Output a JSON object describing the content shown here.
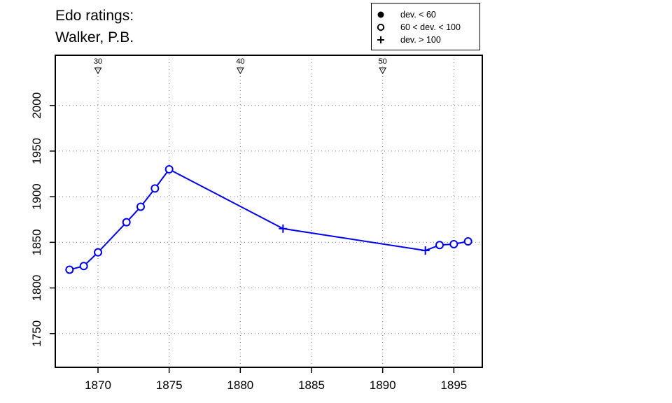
{
  "chart_data": {
    "type": "line",
    "title_lines": [
      "Edo ratings:",
      "Walker, P.B."
    ],
    "xlabel": "",
    "ylabel": "",
    "xlim": [
      1867,
      1897
    ],
    "ylim": [
      1713,
      2055
    ],
    "x_ticks": [
      1870,
      1875,
      1880,
      1885,
      1890,
      1895
    ],
    "y_ticks": [
      1750,
      1800,
      1850,
      1900,
      1950,
      2000
    ],
    "grid": true,
    "legend": {
      "placement": "top-right",
      "entries": [
        {
          "symbol": "filled-circle",
          "label": "dev. < 60"
        },
        {
          "symbol": "open-circle",
          "label": "60 < dev. < 100"
        },
        {
          "symbol": "plus",
          "label": "dev. > 100"
        }
      ]
    },
    "age_markers": [
      {
        "x": 1870,
        "label": "30"
      },
      {
        "x": 1880,
        "label": "40"
      },
      {
        "x": 1890,
        "label": "50"
      }
    ],
    "series": [
      {
        "color": "#0000ee",
        "points": [
          {
            "x": 1868,
            "y": 1820,
            "marker": "open-circle"
          },
          {
            "x": 1869,
            "y": 1824,
            "marker": "open-circle"
          },
          {
            "x": 1870,
            "y": 1839,
            "marker": "open-circle"
          },
          {
            "x": 1872,
            "y": 1872,
            "marker": "open-circle"
          },
          {
            "x": 1873,
            "y": 1889,
            "marker": "open-circle"
          },
          {
            "x": 1874,
            "y": 1909,
            "marker": "open-circle"
          },
          {
            "x": 1875,
            "y": 1930,
            "marker": "open-circle"
          },
          {
            "x": 1883,
            "y": 1865,
            "marker": "plus"
          },
          {
            "x": 1893,
            "y": 1841,
            "marker": "plus"
          },
          {
            "x": 1894,
            "y": 1847,
            "marker": "open-circle"
          },
          {
            "x": 1895,
            "y": 1848,
            "marker": "open-circle"
          },
          {
            "x": 1896,
            "y": 1851,
            "marker": "open-circle"
          }
        ]
      }
    ]
  }
}
